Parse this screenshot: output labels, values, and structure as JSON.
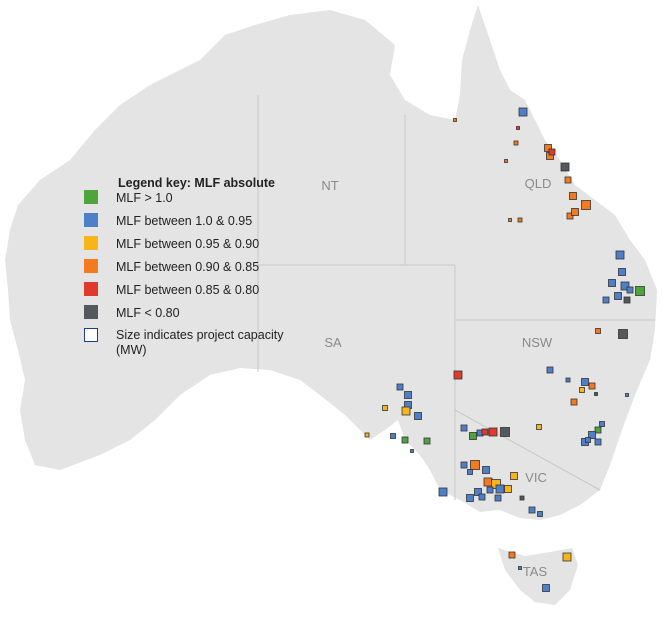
{
  "legend": {
    "title": "Legend key: MLF absolute",
    "items": [
      {
        "label": "MLF > 1.0",
        "color": "#4ea53c"
      },
      {
        "label": "MLF between 1.0 & 0.95",
        "color": "#4f7fc8"
      },
      {
        "label": "MLF between 0.95 & 0.90",
        "color": "#f6b519"
      },
      {
        "label": "MLF between 0.90 & 0.85",
        "color": "#f47a20"
      },
      {
        "label": "MLF between 0.85 & 0.80",
        "color": "#e03a2e"
      },
      {
        "label": "MLF < 0.80",
        "color": "#55585c"
      }
    ],
    "size_note": "Size indicates project capacity (MW)"
  },
  "regions": [
    "NT",
    "QLD",
    "SA",
    "NSW",
    "VIC",
    "TAS"
  ]
}
